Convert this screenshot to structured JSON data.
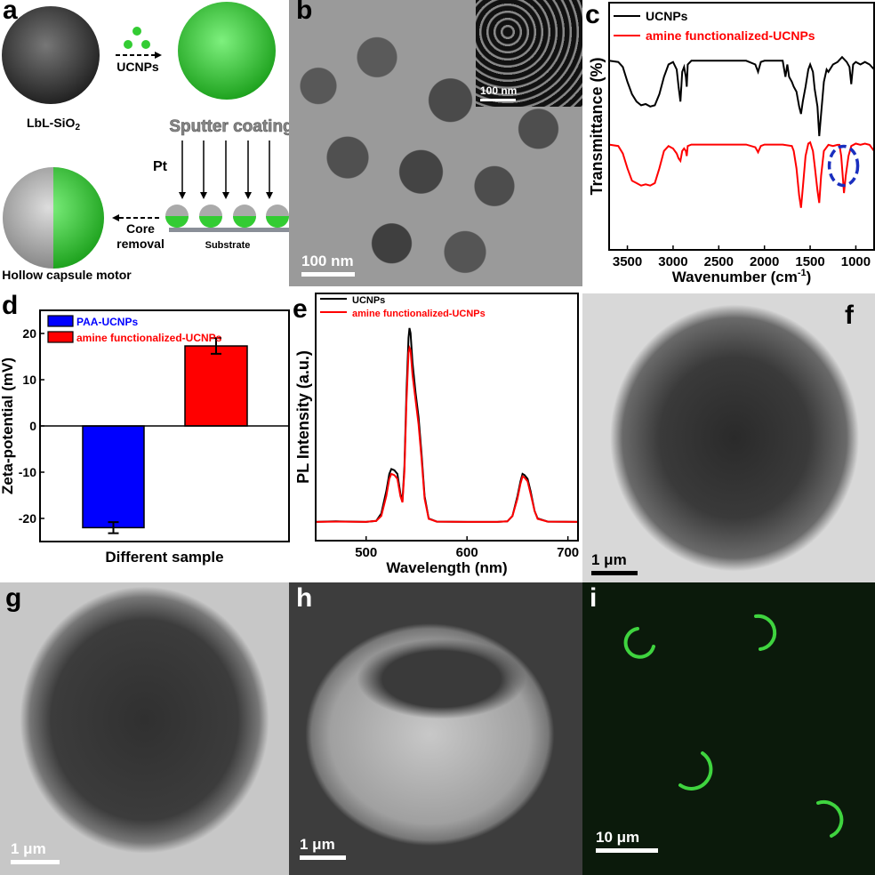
{
  "panels": {
    "a": {
      "label": "a",
      "lbl_sio": "LbL-SiO",
      "lbl_sio_sub": "2",
      "ucnps": "UCNPs",
      "sputter": "Sputter coating",
      "pt": "Pt",
      "core": "Core",
      "removal": "removal",
      "substrate": "Substrate",
      "hollow": "Hollow capsule motor"
    },
    "b": {
      "label": "b",
      "scale": "100 nm",
      "inset_scale": "100 nm"
    },
    "c": {
      "label": "c"
    },
    "d": {
      "label": "d"
    },
    "e": {
      "label": "e"
    },
    "f": {
      "label": "f",
      "scale": "1 μm"
    },
    "g": {
      "label": "g",
      "scale": "1 μm"
    },
    "h": {
      "label": "h",
      "scale": "1 μm"
    },
    "i": {
      "label": "i",
      "scale": "10 μm"
    }
  },
  "colors": {
    "black_series": "#000000",
    "red_series": "#ff0000",
    "blue_bar": "#0000ff",
    "red_bar": "#ff0000",
    "highlight_ellipse": "#1a2fbf",
    "fluorescence": "#3fd43f"
  },
  "chart_data": [
    {
      "id": "c",
      "type": "line",
      "xlabel": "Wavenumber (cm",
      "xlabel_sup": "-1",
      "xlabel_end": ")",
      "ylabel": "Transmittance (%)",
      "xlim": [
        3700,
        800
      ],
      "x_reversed": true,
      "ylim": [
        0,
        100
      ],
      "xticks": [
        3500,
        3000,
        2500,
        2000,
        1500,
        1000
      ],
      "y_ticks_shown": false,
      "grid": false,
      "legend": "top-left",
      "annotation": "dashed ellipse around ~1130 cm-1 band of red series",
      "series": [
        {
          "name": "UCNPs",
          "color": "#000000",
          "x": [
            3700,
            3600,
            3550,
            3500,
            3450,
            3400,
            3350,
            3300,
            3250,
            3200,
            3150,
            3100,
            3050,
            3000,
            2960,
            2940,
            2920,
            2900,
            2880,
            2860,
            2850,
            2840,
            2800,
            2500,
            2200,
            2100,
            2070,
            2040,
            2000,
            1800,
            1770,
            1750,
            1730,
            1700,
            1680,
            1650,
            1620,
            1600,
            1580,
            1550,
            1520,
            1500,
            1470,
            1450,
            1420,
            1400,
            1380,
            1350,
            1320,
            1300,
            1250,
            1200,
            1150,
            1100,
            1070,
            1050,
            1030,
            1000,
            950,
            900,
            850,
            800
          ],
          "y": [
            76.5,
            76,
            74,
            68,
            63,
            60,
            58.5,
            59,
            58,
            58.5,
            63,
            70,
            75,
            76,
            73,
            66,
            60,
            72,
            74,
            70,
            66,
            75,
            76.5,
            76.5,
            76.5,
            75,
            72,
            76,
            76.5,
            76.5,
            70,
            75,
            70,
            68,
            66,
            64,
            58,
            55,
            60,
            66,
            73,
            75,
            72,
            65,
            58,
            46,
            55,
            68,
            73,
            72,
            75,
            76,
            78,
            76,
            74,
            67,
            75,
            76,
            75,
            76,
            75,
            73
          ]
        },
        {
          "name": "amine functionalized-UCNPs",
          "color": "#ff0000",
          "x": [
            3700,
            3600,
            3550,
            3500,
            3450,
            3400,
            3350,
            3300,
            3250,
            3200,
            3150,
            3100,
            3050,
            3000,
            2960,
            2940,
            2920,
            2900,
            2880,
            2860,
            2850,
            2840,
            2800,
            2500,
            2200,
            2100,
            2070,
            2040,
            2000,
            1800,
            1700,
            1680,
            1650,
            1620,
            1600,
            1580,
            1550,
            1520,
            1500,
            1470,
            1450,
            1420,
            1400,
            1380,
            1350,
            1300,
            1250,
            1200,
            1180,
            1160,
            1140,
            1130,
            1110,
            1080,
            1050,
            1000,
            950,
            900,
            850,
            800
          ],
          "y": [
            42.6,
            42,
            39,
            33,
            28,
            27,
            26,
            26.5,
            26,
            27,
            33,
            40,
            42,
            41,
            39,
            37,
            36,
            40,
            41,
            40,
            38,
            42,
            42.6,
            42.6,
            42.6,
            41.5,
            39.5,
            42,
            42.6,
            42.6,
            42,
            40,
            33,
            22,
            17,
            25,
            38,
            43,
            43.5,
            40,
            34,
            24,
            19,
            30,
            40,
            42.5,
            42,
            42.5,
            42.5,
            38,
            28,
            23,
            30,
            38,
            42,
            43,
            42.5,
            43,
            42.5,
            40
          ]
        }
      ]
    },
    {
      "id": "d",
      "type": "bar",
      "xlabel": "Different sample",
      "ylabel": "Zeta-potential (mV)",
      "ylim": [
        -25,
        25
      ],
      "yticks": [
        -20,
        -10,
        0,
        10,
        20
      ],
      "legend": "top-left",
      "grid": false,
      "series": [
        {
          "name": "PAA-UCNPs",
          "value": -22.0,
          "error": 1.2,
          "color": "#0000ff"
        },
        {
          "name": "amine functionalized-UCNPs",
          "value": 17.3,
          "error": 1.7,
          "color": "#ff0000"
        }
      ]
    },
    {
      "id": "e",
      "type": "line",
      "xlabel": "Wavelength (nm)",
      "ylabel": "PL Intensity (a.u.)",
      "xlim": [
        450,
        710
      ],
      "ylim": [
        0,
        1
      ],
      "xticks": [
        500,
        600,
        700
      ],
      "y_ticks_shown": false,
      "grid": false,
      "legend": "top-left",
      "series": [
        {
          "name": "UCNPs",
          "color": "#000000",
          "x": [
            450,
            470,
            500,
            510,
            515,
            520,
            523,
            525,
            528,
            531,
            534,
            536,
            538,
            540,
            542,
            543,
            544,
            546,
            549,
            552,
            555,
            558,
            562,
            570,
            600,
            630,
            640,
            645,
            650,
            653,
            655,
            657,
            660,
            663,
            667,
            670,
            680,
            710
          ],
          "y": [
            0.076,
            0.078,
            0.076,
            0.08,
            0.11,
            0.2,
            0.27,
            0.29,
            0.285,
            0.27,
            0.19,
            0.16,
            0.3,
            0.6,
            0.82,
            0.86,
            0.84,
            0.72,
            0.6,
            0.5,
            0.35,
            0.18,
            0.09,
            0.077,
            0.076,
            0.076,
            0.078,
            0.1,
            0.18,
            0.24,
            0.27,
            0.265,
            0.25,
            0.2,
            0.12,
            0.09,
            0.077,
            0.076
          ]
        },
        {
          "name": "amine functionalized-UCNPs",
          "color": "#ff0000",
          "x": [
            450,
            470,
            500,
            510,
            515,
            520,
            523,
            525,
            528,
            531,
            534,
            536,
            538,
            540,
            542,
            543,
            544,
            546,
            549,
            552,
            555,
            558,
            562,
            570,
            600,
            630,
            640,
            645,
            650,
            653,
            655,
            657,
            660,
            663,
            667,
            670,
            680,
            710
          ],
          "y": [
            0.076,
            0.077,
            0.076,
            0.08,
            0.1,
            0.18,
            0.25,
            0.27,
            0.265,
            0.25,
            0.18,
            0.155,
            0.28,
            0.56,
            0.76,
            0.78,
            0.77,
            0.67,
            0.57,
            0.47,
            0.33,
            0.17,
            0.088,
            0.077,
            0.076,
            0.076,
            0.078,
            0.1,
            0.17,
            0.23,
            0.26,
            0.255,
            0.24,
            0.19,
            0.12,
            0.088,
            0.077,
            0.076
          ]
        }
      ]
    }
  ]
}
